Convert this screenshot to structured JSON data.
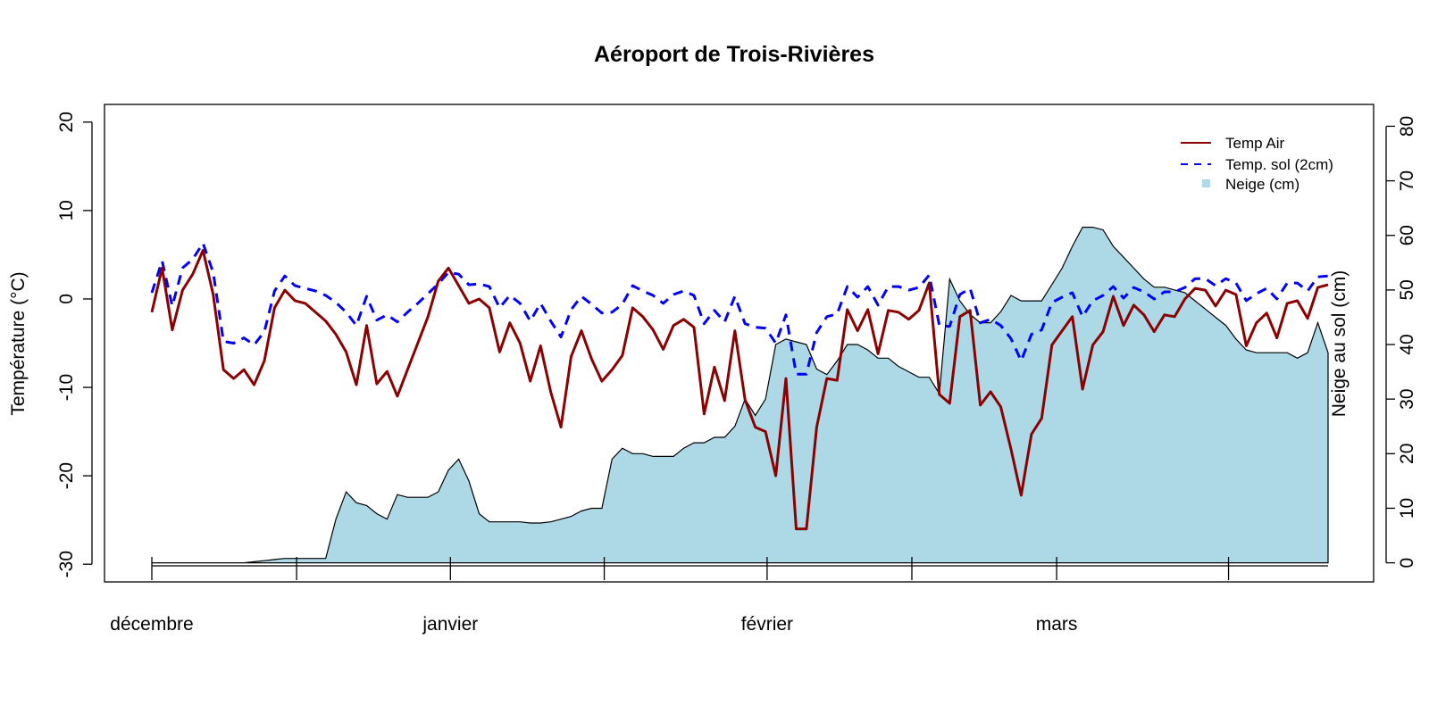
{
  "chart_data": {
    "type": "line",
    "title": "Aéroport de Trois-Rivières",
    "ylabel": "Température (°C)",
    "y2label": "Neige au sol (cm)",
    "ylim": [
      -32,
      22
    ],
    "y2lim": [
      -3.5,
      84
    ],
    "y_ticks": [
      -30,
      -20,
      -10,
      0,
      10,
      20
    ],
    "y2_ticks": [
      0,
      10,
      20,
      30,
      40,
      50,
      60,
      70,
      80
    ],
    "x_range": [
      0,
      130
    ],
    "month_labels": [
      {
        "label": "décembre",
        "x": 0
      },
      {
        "label": "janvier",
        "x": 33
      },
      {
        "label": "février",
        "x": 68
      },
      {
        "label": "mars",
        "x": 100
      }
    ],
    "x_ticks": [
      0,
      16,
      33,
      50,
      68,
      84,
      100,
      119
    ],
    "grid": false,
    "legend_position": "top-right",
    "series": [
      {
        "name": "Temp Air",
        "color": "#8B0000",
        "style": "solid",
        "axis": "left",
        "values": [
          -1.5,
          3.5,
          -3.5,
          1,
          2.8,
          5.5,
          0.5,
          -8,
          -9,
          -8,
          -9.7,
          -7,
          -1,
          1,
          -0.2,
          -0.5,
          -1.5,
          -2.5,
          -4,
          -6,
          -9.7,
          -3,
          -9.6,
          -8.2,
          -11,
          -8,
          -5,
          -2,
          2,
          3.5,
          1.5,
          -0.5,
          0,
          -1,
          -6,
          -2.7,
          -5,
          -9.3,
          -5.3,
          -10.5,
          -14.5,
          -6.5,
          -3.6,
          -6.8,
          -9.3,
          -8,
          -6.4,
          -1,
          -2,
          -3.5,
          -5.7,
          -3,
          -2.3,
          -3.2,
          -13,
          -7.7,
          -11.5,
          -3.6,
          -11.4,
          -14.5,
          -15,
          -20,
          -9,
          -26,
          -26,
          -14.5,
          -9,
          -9.2,
          -1.2,
          -3.6,
          -1.2,
          -6.2,
          -1.3,
          -1.5,
          -2.3,
          -1.3,
          1.8,
          -10.8,
          -11.8,
          -2,
          -1.3,
          -12,
          -10.5,
          -12.2,
          -17,
          -22.2,
          -15.3,
          -13.5,
          -5.2,
          -3.6,
          -2,
          -10.2,
          -5.2,
          -3.7,
          0.3,
          -3,
          -0.7,
          -1.8,
          -3.7,
          -1.8,
          -2,
          0,
          1.2,
          1,
          -0.8,
          1,
          0.5,
          -5.3,
          -2.7,
          -1.6,
          -4.4,
          -0.5,
          -0.2,
          -2.2,
          1.3,
          1.6
        ]
      },
      {
        "name": "Temp. sol (2cm)",
        "color": "#0000FF",
        "style": "dashed",
        "axis": "left",
        "values": [
          0.7,
          4.3,
          -0.8,
          3.5,
          4.5,
          6.3,
          3,
          -4.8,
          -5,
          -4.4,
          -5.2,
          -3.7,
          0.9,
          2.6,
          1.5,
          1.2,
          0.9,
          0.4,
          -0.4,
          -1.5,
          -3,
          0.3,
          -2.4,
          -1.8,
          -2.6,
          -1.5,
          -0.5,
          0.6,
          1.7,
          3,
          2.8,
          1.6,
          1.7,
          1.4,
          -1,
          0.4,
          -0.5,
          -2.5,
          -0.5,
          -2.5,
          -4.3,
          -1.2,
          0.3,
          -0.6,
          -1.6,
          -1.5,
          -0.6,
          1.5,
          0.9,
          0.4,
          -0.5,
          0.5,
          0.9,
          0.4,
          -2.8,
          -1.3,
          -2.6,
          0.3,
          -2.8,
          -3.2,
          -3.3,
          -5,
          -1.8,
          -8.5,
          -8.5,
          -3.8,
          -2,
          -1.7,
          1.4,
          0.2,
          1.4,
          -0.7,
          1.4,
          1.4,
          1,
          1.3,
          2.7,
          -3,
          -3.1,
          0.5,
          1.2,
          -2.7,
          -2.3,
          -3,
          -4.5,
          -7,
          -4,
          -3.5,
          -0.4,
          0.2,
          0.7,
          -2,
          -0.2,
          0.4,
          1.4,
          0.1,
          1.3,
          0.8,
          0,
          0.8,
          0.8,
          1.3,
          2.3,
          2.3,
          1.5,
          2.3,
          1.8,
          -0.2,
          0.6,
          1.2,
          0,
          1.8,
          1.8,
          0.9,
          2.5,
          2.6
        ]
      },
      {
        "name": "Neige (cm)",
        "color": "#ADD8E6",
        "style": "area",
        "axis": "right",
        "values": [
          0,
          0,
          0,
          0,
          0,
          0,
          0,
          0,
          0,
          0,
          0.2,
          0.4,
          0.6,
          0.8,
          0.8,
          0.8,
          0.8,
          0.8,
          8,
          13,
          11,
          10.5,
          9,
          8,
          12.5,
          12,
          12,
          12,
          13,
          17,
          19,
          15,
          9,
          7.5,
          7.5,
          7.5,
          7.5,
          7.3,
          7.3,
          7.5,
          8,
          8.5,
          9.5,
          10,
          10,
          19,
          21,
          20,
          20,
          19.5,
          19.5,
          19.5,
          21,
          22,
          22,
          23,
          23,
          25,
          30,
          27,
          30,
          40,
          41,
          40.5,
          40,
          35.5,
          34.5,
          37,
          40,
          40,
          39,
          37.5,
          37.5,
          36,
          35,
          34,
          34,
          31,
          52,
          48,
          45.5,
          44,
          44,
          46,
          49,
          48,
          48,
          48,
          51,
          54,
          58,
          61.5,
          61.5,
          61,
          58,
          56,
          54,
          52,
          50.5,
          50.5,
          50,
          49.5,
          48,
          46.5,
          45,
          43.5,
          41,
          39,
          38.5,
          38.5,
          38.5,
          38.5,
          37.5,
          38.5,
          44,
          38.5
        ]
      }
    ]
  }
}
